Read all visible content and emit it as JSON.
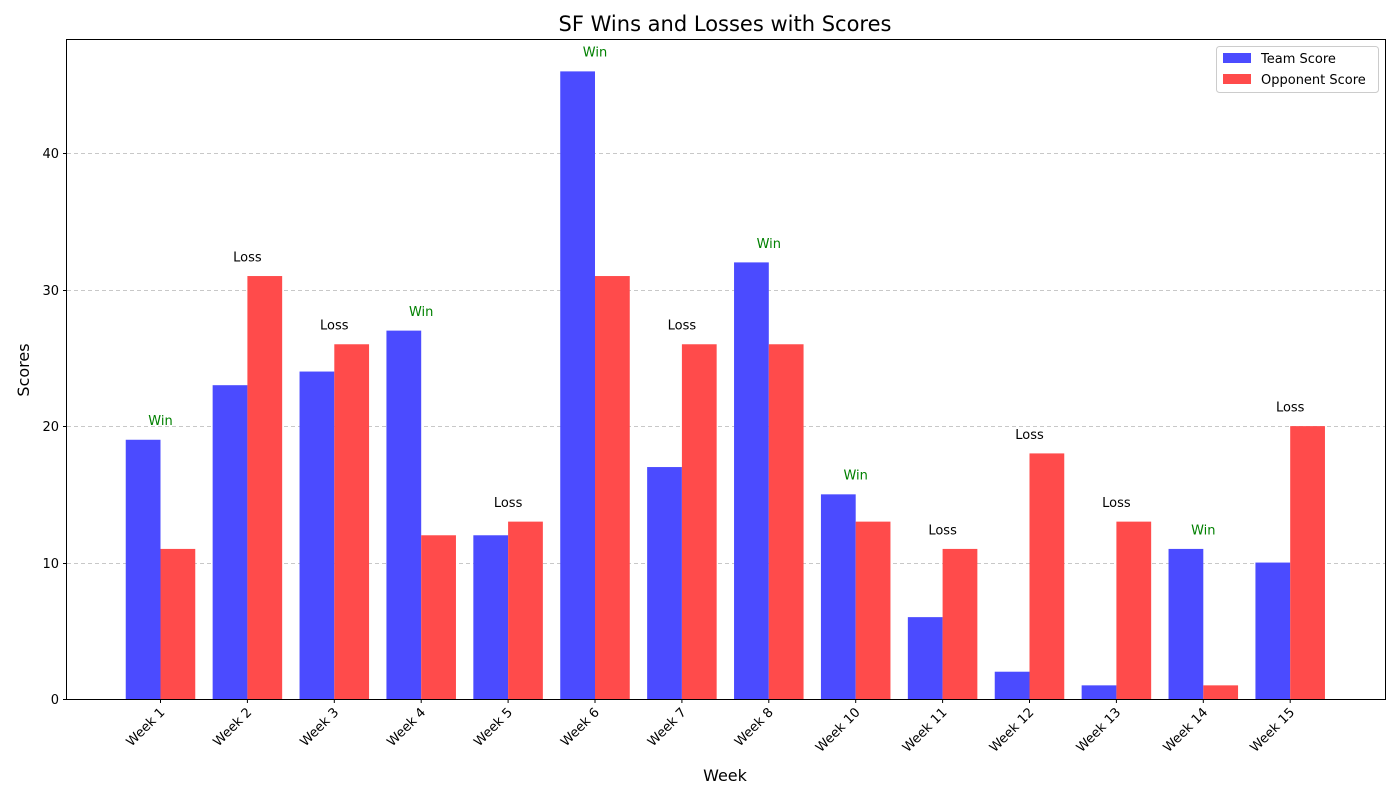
{
  "chart_data": {
    "type": "bar",
    "title": "SF Wins and Losses with Scores",
    "xlabel": "Week",
    "ylabel": "Scores",
    "ylim": [
      0,
      48.3
    ],
    "yticks": [
      0,
      10,
      20,
      30,
      40
    ],
    "grid": "y-dashed",
    "legend_position": "top-right",
    "categories": [
      "Week 1",
      "Week 2",
      "Week 3",
      "Week 4",
      "Week 5",
      "Week 6",
      "Week 7",
      "Week 8",
      "Week 10",
      "Week 11",
      "Week 12",
      "Week 13",
      "Week 14",
      "Week 15"
    ],
    "series": [
      {
        "name": "Team Score",
        "color": "#4b4bff",
        "values": [
          19,
          23,
          24,
          27,
          12,
          46,
          17,
          32,
          15,
          6,
          2,
          1,
          11,
          10
        ]
      },
      {
        "name": "Opponent Score",
        "color": "#ff4b4b",
        "values": [
          11,
          31,
          26,
          12,
          13,
          31,
          26,
          26,
          13,
          11,
          18,
          13,
          1,
          20
        ]
      }
    ],
    "results": [
      "Win",
      "Loss",
      "Loss",
      "Win",
      "Loss",
      "Win",
      "Loss",
      "Win",
      "Win",
      "Loss",
      "Loss",
      "Loss",
      "Win",
      "Loss"
    ],
    "result_colors": {
      "Win": "#008000",
      "Loss": "#000000"
    }
  }
}
